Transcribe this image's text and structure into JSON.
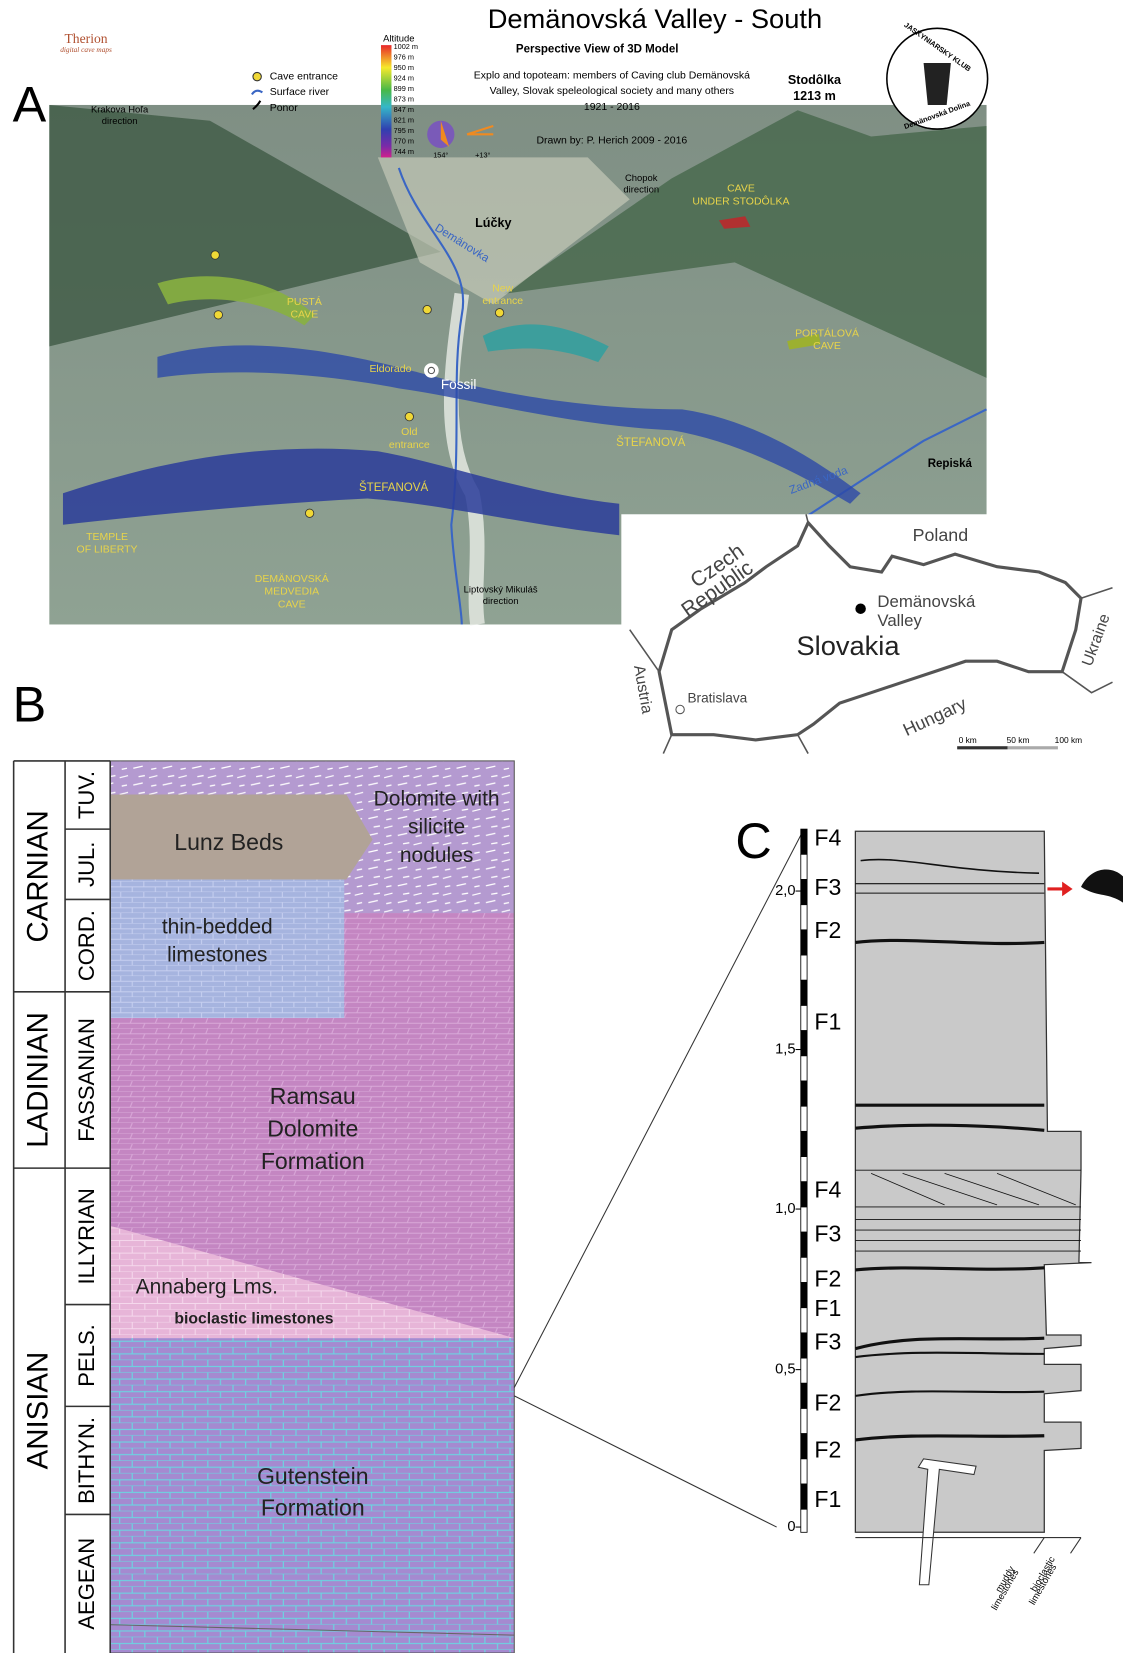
{
  "panel_a": {
    "label": "A",
    "title": "Demänovská Valley - South",
    "subtitle": "Perspective View of 3D Model",
    "credits": [
      "Explo and topoteam: members of Caving club Demänovská",
      "Valley, Slovak speleological society and many others",
      "1921 - 2016"
    ],
    "drawn_by": "Drawn by: P. Herich  2009 - 2016",
    "therion": [
      "Therion",
      "digital cave maps"
    ],
    "club": [
      "JASKYNIARSKY KLUB",
      "Demänovská Dolina"
    ],
    "legend": [
      "Cave entrance",
      "Surface river",
      "Ponor"
    ],
    "altitude_title": "Altitude",
    "altitude": [
      "1002 m",
      "976 m",
      "950 m",
      "924 m",
      "899 m",
      "873 m",
      "847 m",
      "821 m",
      "795 m",
      "770 m",
      "744 m"
    ],
    "azimuth": "154°",
    "tilt": "+13°",
    "peak": [
      "Stodôlka",
      "1213 m"
    ],
    "places": [
      [
        "Krakova Hoľa",
        "direction"
      ],
      [
        "Chopok",
        "direction"
      ],
      [
        "Lúčky"
      ],
      [
        "Demänovka"
      ],
      [
        "CAVE",
        "UNDER STODÔLKA"
      ],
      [
        "PUSTÁ",
        "CAVE"
      ],
      [
        "New",
        "entrance"
      ],
      [
        "PORTÁLOVÁ",
        "CAVE"
      ],
      [
        "Eldorado"
      ],
      [
        "Fossil"
      ],
      [
        "Old",
        "entrance"
      ],
      [
        "ŠTEFANOVÁ"
      ],
      [
        "ŠTEFANOVÁ"
      ],
      [
        "Repiská"
      ],
      [
        "Zadná voda"
      ],
      [
        "TEMPLE",
        "OF LIBERTY"
      ],
      [
        "DEMÄNOVSKÁ",
        "MEDVEDIA",
        "CAVE"
      ],
      [
        "Liptovský Mikuláš",
        "direction"
      ]
    ]
  },
  "map": {
    "labels": [
      [
        "Czech",
        "Republic"
      ],
      [
        "Poland"
      ],
      [
        "Ukraine"
      ],
      [
        "Hungary"
      ],
      [
        "Austria"
      ],
      [
        "Slovakia"
      ],
      [
        "Demänovská",
        "Valley"
      ],
      [
        "Bratislava"
      ]
    ],
    "scale": [
      "0 km",
      "50 km",
      "100 km"
    ]
  },
  "panel_b": {
    "label": "B",
    "stages": [
      "CARNIAN",
      "LADINIAN",
      "ANISIAN"
    ],
    "substages": [
      "TUV.",
      "JUL.",
      "CORD.",
      "FASSANIAN",
      "ILLYRIAN",
      "PELS.",
      "BITHYN.",
      "AEGEAN"
    ],
    "units": [
      [
        "Dolomite with",
        "silicite",
        "nodules"
      ],
      [
        "Lunz Beds"
      ],
      [
        "thin-bedded",
        "limestones"
      ],
      [
        "Ramsau",
        "Dolomite",
        "Formation"
      ],
      [
        "Annaberg Lms."
      ],
      [
        "bioclastic limestones"
      ],
      [
        "Gutenstein",
        "Formation"
      ]
    ]
  },
  "panel_c": {
    "label": "C",
    "scale": [
      "0",
      "0,5",
      "1,0",
      "1,5",
      "2,0"
    ],
    "facies": [
      "F4",
      "F3",
      "F2",
      "F1",
      "F4",
      "F3",
      "F2",
      "F1",
      "F3",
      "F2",
      "F2",
      "F1"
    ],
    "legend": [
      [
        "muddy",
        "limestones"
      ],
      [
        "bioclastic",
        "limestones"
      ]
    ]
  }
}
